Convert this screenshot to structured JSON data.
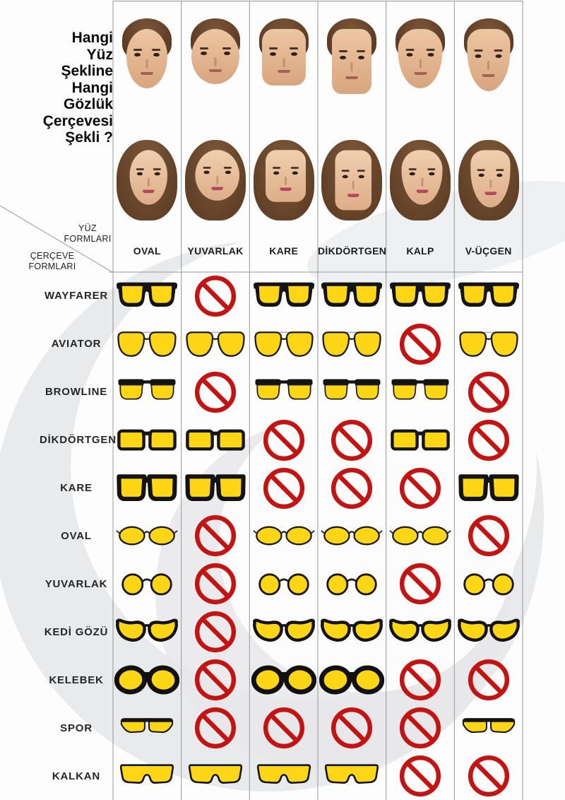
{
  "title": {
    "lines": [
      "Hangi",
      "Yüz",
      "Şekline",
      "Hangi",
      "Gözlük",
      "Çerçevesi",
      "Şekli ?"
    ]
  },
  "corner": {
    "face_forms_label": "YÜZ FORMLARI",
    "frame_forms_label": "ÇERÇEVE FORMLARI"
  },
  "columns": [
    {
      "label": "OVAL",
      "shape": "oval"
    },
    {
      "label": "YUVARLAK",
      "shape": "round"
    },
    {
      "label": "KARE",
      "shape": "square"
    },
    {
      "label": "DİKDÖRTGEN",
      "shape": "rect"
    },
    {
      "label": "KALP",
      "shape": "heart"
    },
    {
      "label": "V-ÜÇGEN",
      "shape": "vtri"
    }
  ],
  "rows": [
    {
      "label": "WAYFARER",
      "glasses": "wayfarer",
      "cells": [
        "ok",
        "no",
        "ok",
        "ok",
        "ok",
        "ok"
      ]
    },
    {
      "label": "AVIATOR",
      "glasses": "aviator",
      "cells": [
        "ok",
        "ok",
        "ok",
        "ok",
        "no",
        "ok"
      ]
    },
    {
      "label": "BROWLINE",
      "glasses": "browline",
      "cells": [
        "ok",
        "no",
        "ok",
        "ok",
        "ok",
        "no"
      ]
    },
    {
      "label": "DİKDÖRTGEN",
      "glasses": "rectangle",
      "cells": [
        "ok",
        "ok",
        "no",
        "no",
        "ok",
        "no"
      ]
    },
    {
      "label": "KARE",
      "glasses": "square",
      "cells": [
        "ok",
        "ok",
        "no",
        "no",
        "no",
        "ok"
      ]
    },
    {
      "label": "OVAL",
      "glasses": "oval",
      "cells": [
        "ok",
        "no",
        "ok",
        "ok",
        "ok",
        "no"
      ]
    },
    {
      "label": "YUVARLAK",
      "glasses": "round",
      "cells": [
        "ok",
        "no",
        "ok",
        "ok",
        "no",
        "ok"
      ]
    },
    {
      "label": "KEDİ GÖZÜ",
      "glasses": "cateye",
      "cells": [
        "ok",
        "no",
        "ok",
        "ok",
        "ok",
        "ok"
      ]
    },
    {
      "label": "KELEBEK",
      "glasses": "kelebek",
      "cells": [
        "ok",
        "no",
        "ok",
        "ok",
        "no",
        "no"
      ]
    },
    {
      "label": "SPOR",
      "glasses": "sport",
      "cells": [
        "ok",
        "no",
        "no",
        "no",
        "no",
        "ok"
      ]
    },
    {
      "label": "KALKAN",
      "glasses": "kalkan",
      "cells": [
        "ok",
        "ok",
        "ok",
        "ok",
        "no",
        "no"
      ]
    }
  ],
  "legend": {
    "ok_meaning": "suitable frame (yellow glasses)",
    "no_meaning": "not suitable (prohibition sign)"
  },
  "colors": {
    "lens_yellow": "#FFD616",
    "frame_black": "#141414",
    "prohibition_red": "#C31414",
    "grid_line": "#97979b",
    "text": "#1c1c1c",
    "watermark_gray": "#e9eaec",
    "background": "#fdfdfd"
  }
}
